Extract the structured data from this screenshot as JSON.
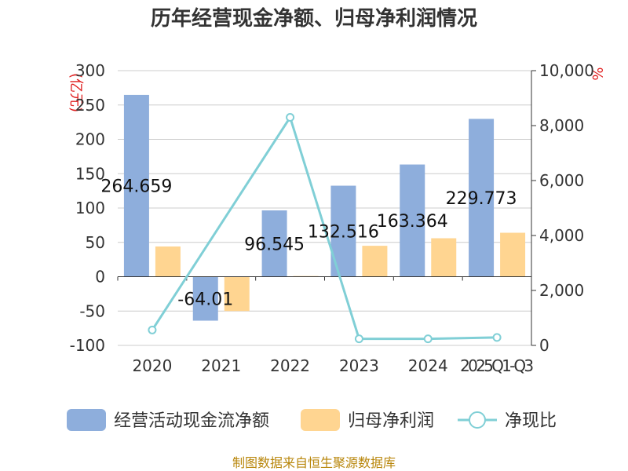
{
  "chart_data": {
    "type": "bar",
    "title": "历年经营现金净额、归母净利润情况",
    "categories": [
      "2020",
      "2021",
      "2022",
      "2023",
      "2024",
      "2025Q1-Q3"
    ],
    "series": [
      {
        "name": "经营活动现金流净额",
        "type": "bar",
        "axis": "left",
        "color": "#8eaedc",
        "values": [
          264.659,
          -64.01,
          96.545,
          132.516,
          163.364,
          229.773
        ]
      },
      {
        "name": "归母净利润",
        "type": "bar",
        "axis": "left",
        "color": "#ffd591",
        "values": [
          44,
          -50,
          1,
          45,
          56,
          64
        ]
      },
      {
        "name": "净现比",
        "type": "line",
        "axis": "right",
        "color": "#80cfd6",
        "values": [
          560,
          null,
          8300,
          240,
          240,
          290
        ]
      }
    ],
    "data_labels": [
      "264.659",
      "-64.01",
      "96.545",
      "132.516",
      "163.364",
      "229.773"
    ],
    "y_left": {
      "min": -100,
      "max": 300,
      "ticks": [
        -100,
        -50,
        0,
        50,
        100,
        150,
        200,
        250,
        300
      ],
      "tick_labels": [
        "-100",
        "-50",
        "0",
        "50",
        "100",
        "150",
        "200",
        "250",
        "300"
      ]
    },
    "y_right": {
      "min": 0,
      "max": 10000,
      "ticks": [
        0,
        2000,
        4000,
        6000,
        8000,
        10000
      ],
      "tick_labels": [
        "0",
        "2,000",
        "4,000",
        "6,000",
        "8,000",
        "10,000"
      ]
    },
    "left_unit": "(亿元)",
    "right_unit": "%",
    "legend_position": "bottom",
    "grid": true
  },
  "source": "制图数据来自恒生聚源数据库"
}
